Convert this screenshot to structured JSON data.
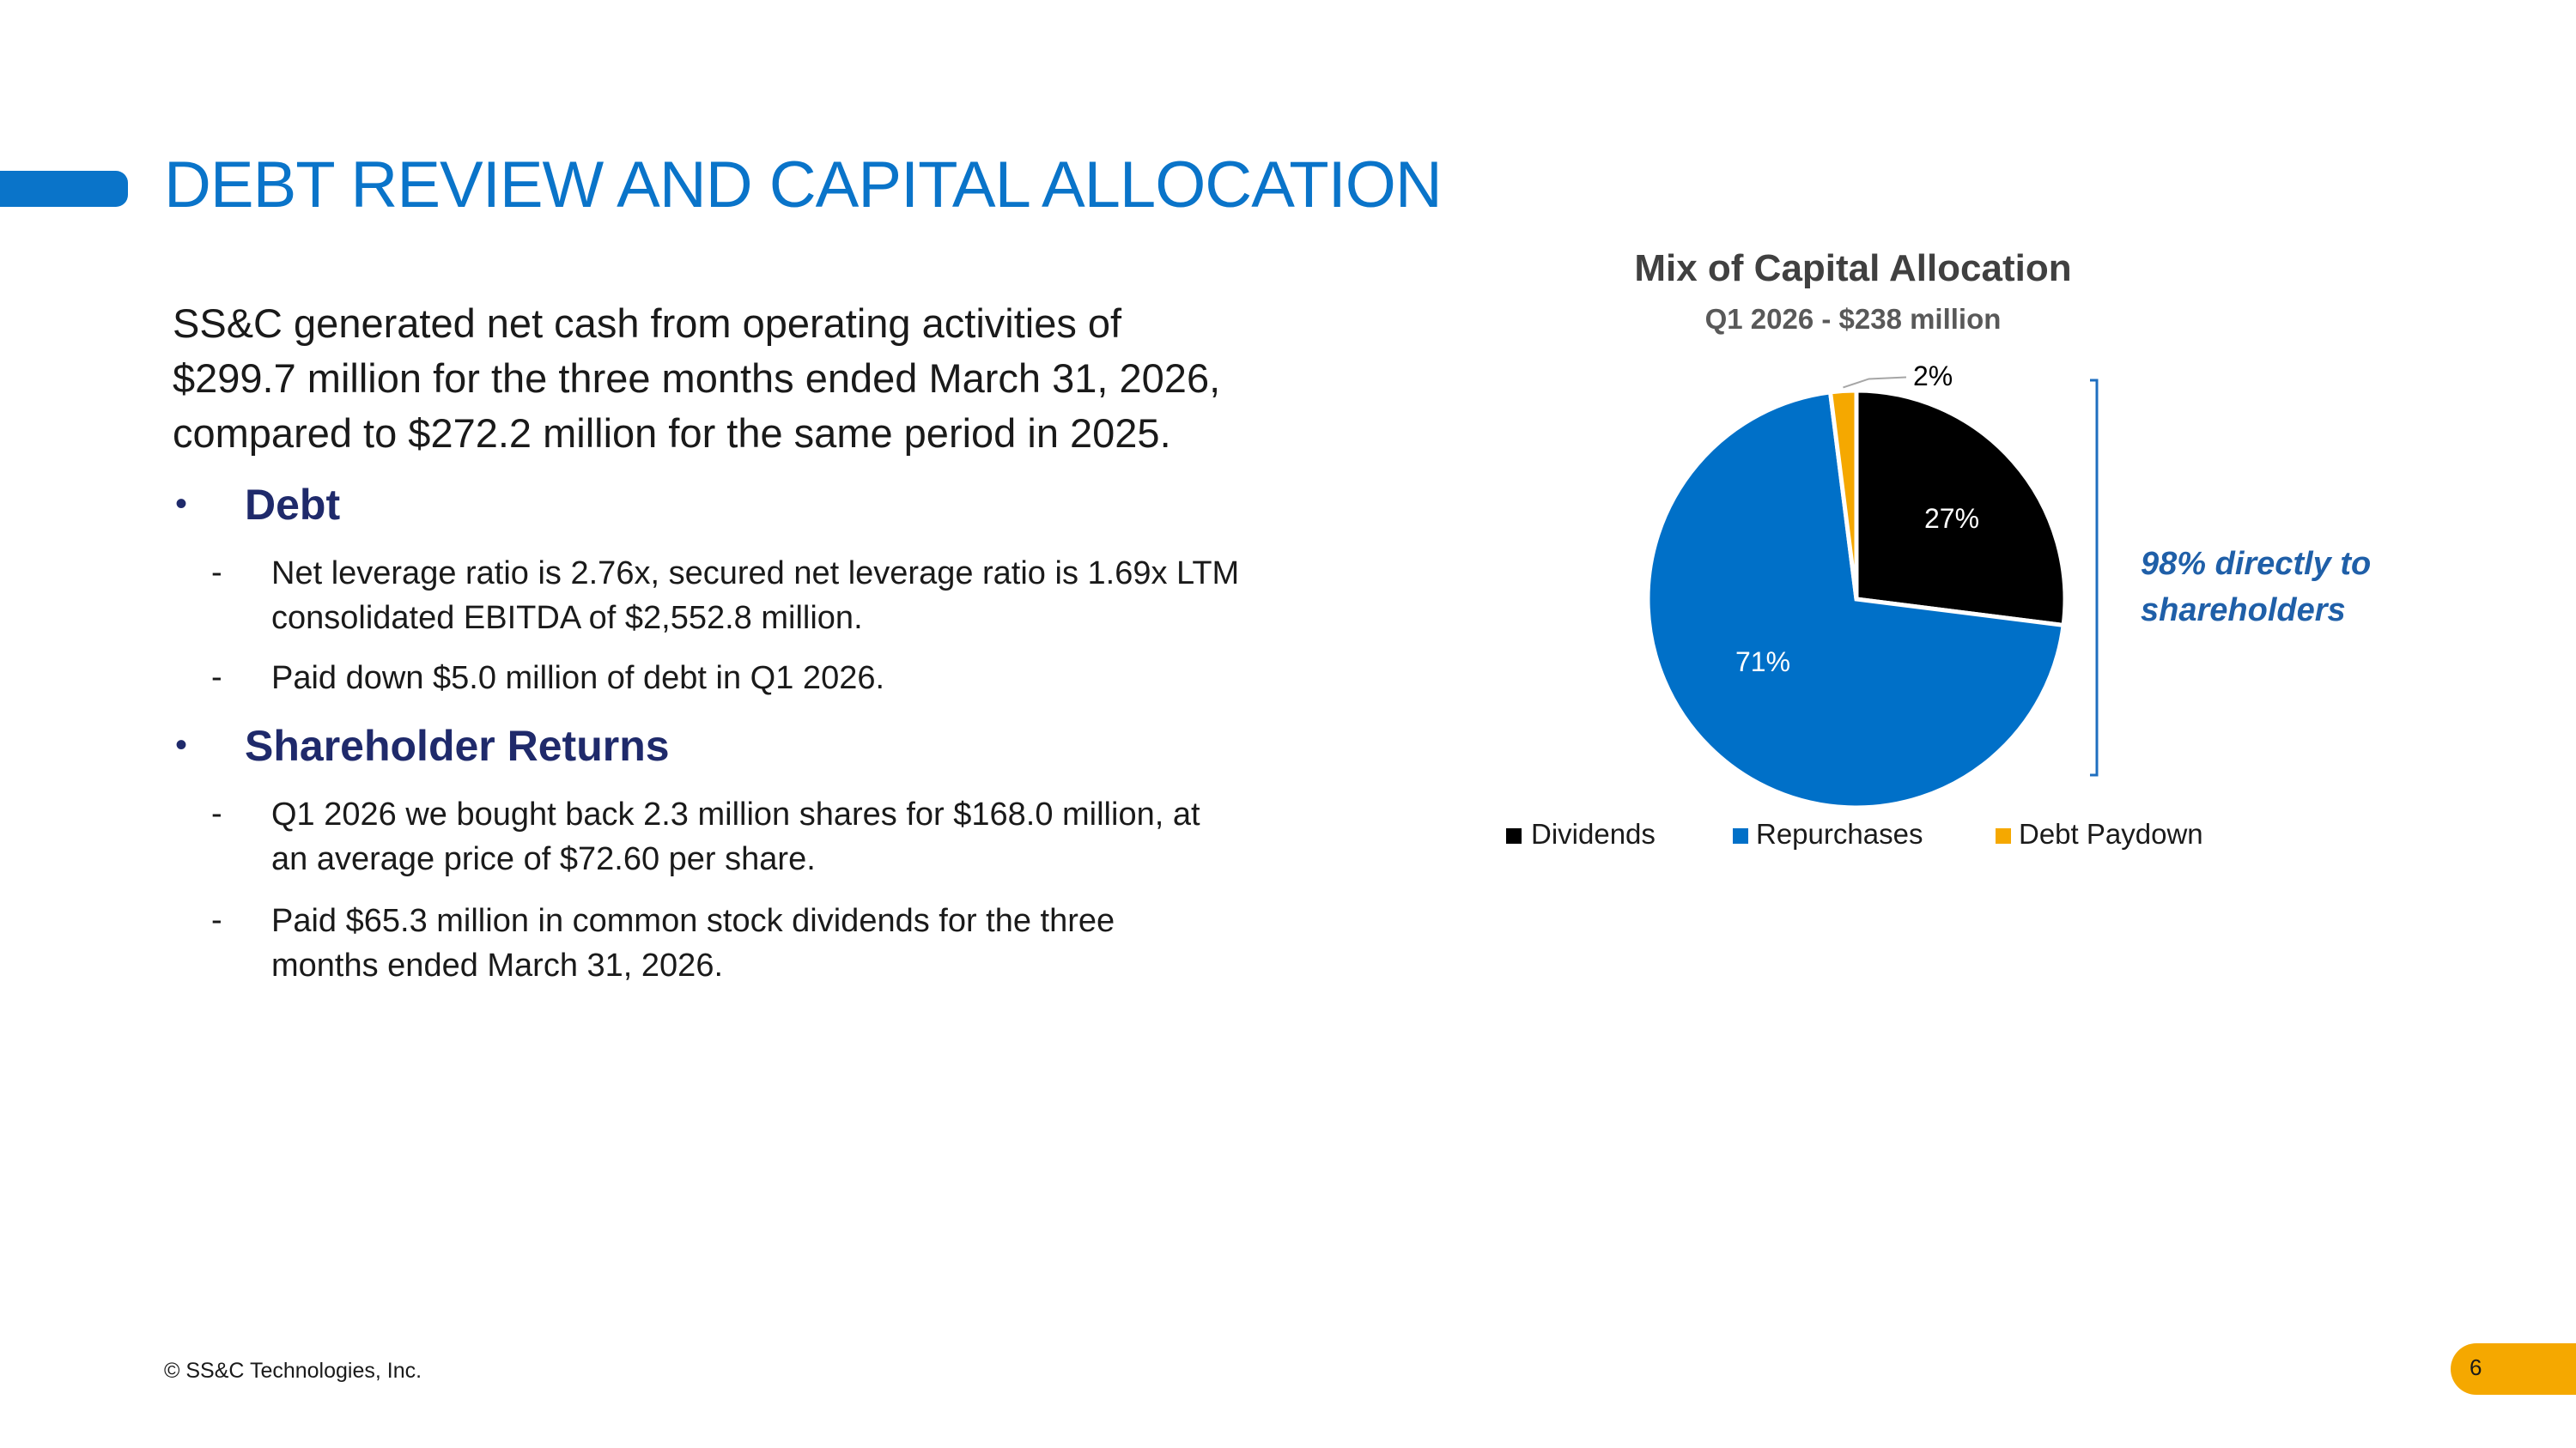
{
  "title": "DEBT REVIEW AND CAPITAL ALLOCATION",
  "intro_lines": [
    "SS&C generated net cash from operating activities of",
    "$299.7 million for the three months ended March 31, 2026,",
    "compared to $272.2 million for the same period in 2025."
  ],
  "sections": [
    {
      "heading": "Debt",
      "items": [
        [
          "Net leverage ratio is 2.76x, secured net leverage ratio is 1.69x LTM",
          "consolidated EBITDA of $2,552.8 million."
        ],
        [
          "Paid down $5.0 million of debt in Q1 2026."
        ]
      ]
    },
    {
      "heading": "Shareholder Returns",
      "items": [
        [
          "Q1 2026 we bought back 2.3 million shares for $168.0 million, at",
          "an average price of $72.60 per share."
        ],
        [
          "Paid $65.3 million in common stock dividends for the three",
          "months ended March 31, 2026."
        ]
      ]
    }
  ],
  "bullet_glyph": "•",
  "dash_glyph": "-",
  "chart_data": {
    "type": "pie",
    "title": "Mix of Capital Allocation",
    "subtitle": "Q1 2026 - $238 million",
    "categories": [
      "Dividends",
      "Repurchases",
      "Debt Paydown"
    ],
    "values": [
      27,
      71,
      2
    ],
    "labels": [
      "27%",
      "71%",
      "2%"
    ],
    "colors": [
      "#000000",
      "#0070c8",
      "#f5a800"
    ],
    "start_angle_deg": 0,
    "direction": "clockwise",
    "legend_placement": "bottom",
    "annotation": [
      "98% directly to",
      "shareholders"
    ]
  },
  "footer": "© SS&C Technologies, Inc.",
  "page_number": "6",
  "colors": {
    "accent": "#0a74c9",
    "heading": "#1f2a6b",
    "badge": "#f5a800",
    "callout": "#1f5fa8"
  }
}
